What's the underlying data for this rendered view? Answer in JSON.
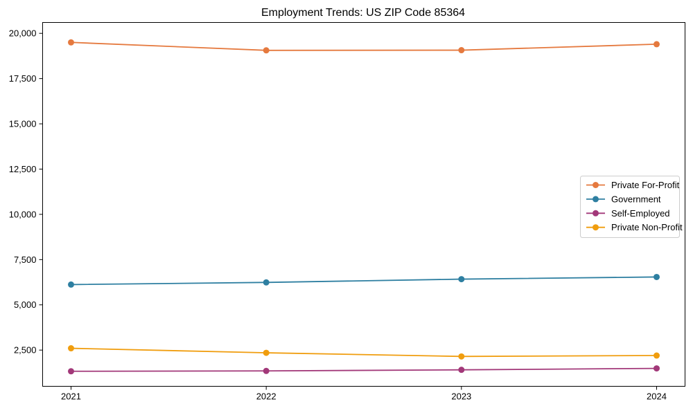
{
  "figure": {
    "background": "#ffffff",
    "axis_color": "#000000",
    "text_color": "#000000"
  },
  "chart_data": {
    "type": "line",
    "title": "Employment Trends: US ZIP Code 85364",
    "xlabel": "",
    "ylabel": "",
    "x": [
      "2021",
      "2022",
      "2023",
      "2024"
    ],
    "ylim": [
      500,
      20600
    ],
    "grid": false,
    "yticks": [
      {
        "value": 2500,
        "label": "2,500"
      },
      {
        "value": 5000,
        "label": "5,000"
      },
      {
        "value": 7500,
        "label": "7,500"
      },
      {
        "value": 10000,
        "label": "10,000"
      },
      {
        "value": 12500,
        "label": "12,500"
      },
      {
        "value": 15000,
        "label": "15,000"
      },
      {
        "value": 17500,
        "label": "17,500"
      },
      {
        "value": 20000,
        "label": "20,000"
      }
    ],
    "series": [
      {
        "name": "Private For-Profit",
        "color": "#e5793e",
        "marker": "circle",
        "values": [
          19500,
          19060,
          19070,
          19400
        ]
      },
      {
        "name": "Government",
        "color": "#2e7fa1",
        "marker": "circle",
        "values": [
          6120,
          6240,
          6420,
          6540
        ]
      },
      {
        "name": "Self-Employed",
        "color": "#a23879",
        "marker": "circle",
        "values": [
          1330,
          1350,
          1410,
          1490
        ]
      },
      {
        "name": "Private Non-Profit",
        "color": "#f09d0e",
        "marker": "circle",
        "values": [
          2600,
          2350,
          2150,
          2200
        ]
      }
    ],
    "legend": {
      "position": "center-right",
      "border_color": "#cccccc",
      "background": "#ffffff"
    }
  }
}
